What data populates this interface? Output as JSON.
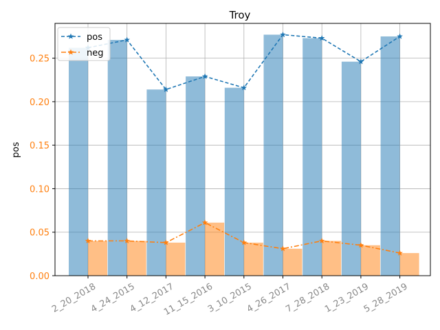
{
  "chart_data": {
    "type": "bar",
    "title": "Troy",
    "xlabel": "",
    "ylabel": "pos",
    "ylim": [
      0,
      0.29
    ],
    "yticks": [
      0.0,
      0.05,
      0.1,
      0.15,
      0.2,
      0.25
    ],
    "ytick_labels": [
      "0.00",
      "0.05",
      "0.10",
      "0.15",
      "0.20",
      "0.25"
    ],
    "categories": [
      "2_20_2018",
      "4_24_2015",
      "4_12_2017",
      "11_15_2016",
      "3_10_2015",
      "4_26_2017",
      "7_28_2018",
      "1_23_2019",
      "5_28_2019"
    ],
    "grid": true,
    "legend_position": "top-left",
    "series": [
      {
        "name": "pos",
        "values": [
          0.262,
          0.271,
          0.214,
          0.229,
          0.216,
          0.277,
          0.273,
          0.246,
          0.275
        ],
        "bar_color": "#8fb9dc",
        "line_color": "#1f77b4",
        "line_style": "dashed",
        "marker": "star"
      },
      {
        "name": "neg",
        "values": [
          0.04,
          0.04,
          0.038,
          0.061,
          0.038,
          0.031,
          0.04,
          0.035,
          0.026
        ],
        "bar_color": "#ffbf86",
        "line_color": "#ff7f0e",
        "line_style": "dashdot",
        "marker": "star"
      }
    ],
    "colors": {
      "ytick_label": "#ff7f0e",
      "xtick_label": "#888888",
      "grid": "#b0b0b0",
      "overlap": "#c79a7a"
    }
  }
}
